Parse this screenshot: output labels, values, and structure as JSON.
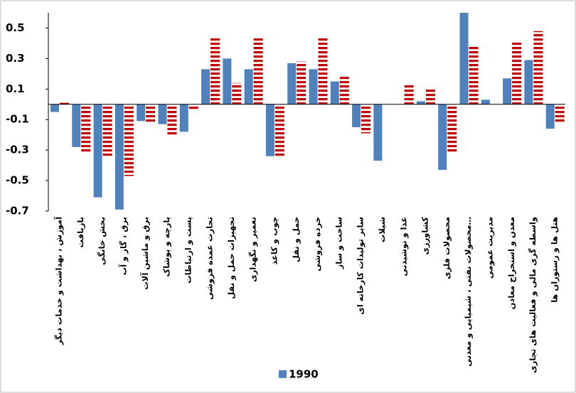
{
  "chart_data": {
    "type": "bar",
    "categories": [
      "آموزش ، بهداشت و خدمات دیگر",
      "بازیافت",
      "بخش خانگی",
      "برق ، گاز و آب",
      "برق و ماشین آلات",
      "پارچه و پوشاک",
      "پست و ارتباطات",
      "تجارت عمده فروشی",
      "تجهیزات حمل و نقل",
      "تعمیر و نگهداری",
      "چوب و کاغذ",
      "حمل و نقل",
      "خرده فروشی",
      "ساخت و ساز",
      "سایر تولیدات کارخانه ای",
      "شیلات",
      "غذا و نوشیدنی",
      "کشاورزی",
      "محصولات فلزی",
      "محصولات نفتی ، شیمیایی و معدنی…",
      "مدیریت عمومی",
      "معدن و استخراج معادن",
      "واسطه گری مالی و فعالیت های تجاری",
      "هتل ها و رستوران ها"
    ],
    "series": [
      {
        "name": "1990",
        "color": "#4f81bd",
        "values": [
          -0.05,
          -0.28,
          -0.61,
          -0.69,
          -0.11,
          -0.13,
          -0.18,
          0.23,
          0.3,
          0.23,
          -0.34,
          0.27,
          0.23,
          0.15,
          -0.15,
          -0.37,
          0,
          0.02,
          -0.43,
          0.6,
          0.03,
          0.17,
          0.29,
          -0.16
        ]
      },
      {
        "color": "#c00000",
        "pattern": "horizontal-stripes",
        "values": [
          0.01,
          -0.32,
          -0.34,
          -0.47,
          -0.12,
          -0.2,
          -0.04,
          0.44,
          0.14,
          0.44,
          -0.34,
          0.28,
          0.44,
          0.18,
          -0.19,
          0,
          0.13,
          0.1,
          -0.32,
          0.38,
          0,
          0.41,
          0.48,
          -0.12
        ]
      }
    ],
    "ylim": [
      -0.7,
      0.6
    ],
    "yticks": [
      -0.7,
      -0.5,
      -0.3,
      -0.1,
      0.1,
      0.3,
      0.5
    ],
    "legend": "bottom"
  }
}
